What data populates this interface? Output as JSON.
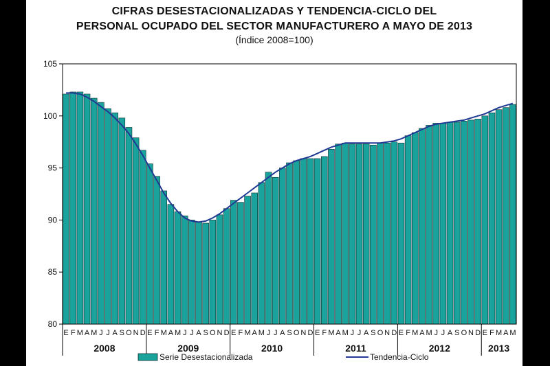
{
  "title": {
    "line1": "CIFRAS DESESTACIONALIZADAS Y TENDENCIA-CICLO DEL",
    "line2": "PERSONAL OCUPADO DEL SECTOR MANUFACTURERO A MAYO DE 2013",
    "subtitle": "(Índice 2008=100)"
  },
  "colors": {
    "bar_fill": "#1aa39d",
    "bar_edge": "#0d2c2c",
    "trend_line": "#1f3a93",
    "frame": "#000000"
  },
  "chart_data": {
    "type": "bar",
    "ylim": [
      80,
      105
    ],
    "yticks": [
      80,
      85,
      90,
      95,
      100,
      105
    ],
    "grid": false,
    "legend_position": "bottom",
    "month_letters": [
      "E",
      "F",
      "M",
      "A",
      "M",
      "J",
      "J",
      "A",
      "S",
      "O",
      "N",
      "D"
    ],
    "year_labels": [
      "2008",
      "2009",
      "2010",
      "2011",
      "2012",
      "2013"
    ],
    "months_per_year": [
      12,
      12,
      12,
      12,
      12,
      5
    ],
    "series": [
      {
        "name": "Serie Desestacionalizada",
        "kind": "bar",
        "values": [
          102.1,
          102.3,
          102.3,
          102.1,
          101.7,
          101.3,
          100.7,
          100.3,
          99.8,
          98.9,
          97.9,
          96.7,
          95.4,
          94.2,
          92.8,
          91.5,
          90.8,
          90.4,
          90.0,
          89.8,
          89.7,
          90.0,
          90.5,
          91.1,
          91.9,
          91.7,
          92.3,
          92.6,
          93.6,
          94.6,
          94.1,
          95.0,
          95.5,
          95.7,
          95.9,
          95.9,
          95.9,
          96.1,
          96.8,
          97.3,
          97.4,
          97.3,
          97.3,
          97.3,
          97.2,
          97.4,
          97.4,
          97.5,
          97.4,
          98.1,
          98.4,
          98.8,
          99.1,
          99.3,
          99.3,
          99.4,
          99.4,
          99.5,
          99.6,
          99.7,
          100.0,
          100.3,
          100.6,
          100.8,
          101.1
        ]
      },
      {
        "name": "Tendencia-Ciclo",
        "kind": "line",
        "values": [
          102.2,
          102.2,
          102.1,
          101.8,
          101.4,
          100.9,
          100.4,
          99.8,
          99.1,
          98.3,
          97.3,
          96.2,
          95.0,
          93.8,
          92.6,
          91.6,
          90.8,
          90.2,
          89.9,
          89.8,
          89.9,
          90.2,
          90.6,
          91.1,
          91.6,
          92.1,
          92.6,
          93.1,
          93.6,
          94.1,
          94.6,
          95.0,
          95.4,
          95.7,
          95.9,
          96.1,
          96.4,
          96.7,
          97.0,
          97.2,
          97.4,
          97.4,
          97.4,
          97.4,
          97.4,
          97.4,
          97.5,
          97.6,
          97.8,
          98.1,
          98.4,
          98.7,
          99.0,
          99.2,
          99.3,
          99.4,
          99.5,
          99.6,
          99.8,
          100.0,
          100.2,
          100.5,
          100.8,
          101.0,
          101.2
        ]
      }
    ]
  }
}
